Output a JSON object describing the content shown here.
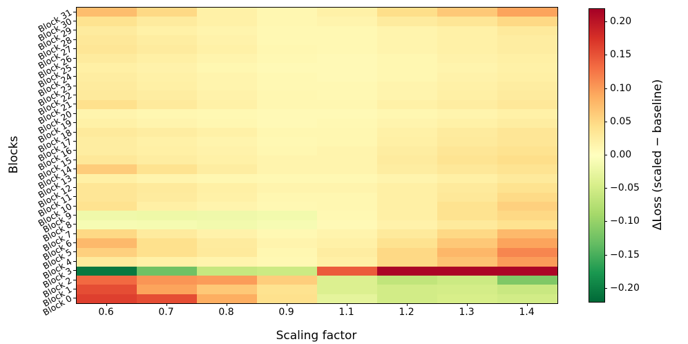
{
  "chart_data": {
    "type": "heatmap",
    "xlabel": "Scaling factor",
    "ylabel": "Blocks",
    "colorbar_label": "ΔLoss (scaled − baseline)",
    "x_categories": [
      "0.6",
      "0.7",
      "0.8",
      "0.9",
      "1.1",
      "1.2",
      "1.3",
      "1.4"
    ],
    "row_labels_top_to_bottom": [
      "Block 31",
      "Block 30",
      "Block 29",
      "Block 28",
      "Block 27",
      "Block 26",
      "Block 25",
      "Block 24",
      "Block 23",
      "Block 22",
      "Block 21",
      "Block 20",
      "Block 19",
      "Block 18",
      "Block 17",
      "Block 16",
      "Block 15",
      "Block 14",
      "Block 13",
      "Block 12",
      "Block 11",
      "Block 10",
      "Block 9",
      "Block 8",
      "Block 7",
      "Block 6",
      "Block 5",
      "Block 4",
      "Block 3",
      "Block 2",
      "Block 1",
      "Block 0"
    ],
    "values_top_to_bottom": [
      [
        0.075,
        0.05,
        0.02,
        0.012,
        0.02,
        0.045,
        0.065,
        0.095
      ],
      [
        0.04,
        0.028,
        0.02,
        0.012,
        0.015,
        0.028,
        0.035,
        0.05
      ],
      [
        0.028,
        0.02,
        0.015,
        0.01,
        0.01,
        0.015,
        0.02,
        0.03
      ],
      [
        0.032,
        0.025,
        0.018,
        0.01,
        0.01,
        0.015,
        0.02,
        0.025
      ],
      [
        0.035,
        0.028,
        0.02,
        0.012,
        0.01,
        0.015,
        0.02,
        0.025
      ],
      [
        0.028,
        0.022,
        0.015,
        0.01,
        0.008,
        0.012,
        0.018,
        0.022
      ],
      [
        0.022,
        0.018,
        0.012,
        0.008,
        0.008,
        0.012,
        0.015,
        0.02
      ],
      [
        0.025,
        0.02,
        0.015,
        0.01,
        0.008,
        0.012,
        0.018,
        0.022
      ],
      [
        0.028,
        0.022,
        0.015,
        0.01,
        0.01,
        0.015,
        0.02,
        0.025
      ],
      [
        0.03,
        0.025,
        0.018,
        0.012,
        0.01,
        0.015,
        0.022,
        0.028
      ],
      [
        0.042,
        0.03,
        0.02,
        0.012,
        0.012,
        0.02,
        0.025,
        0.032
      ],
      [
        0.015,
        0.012,
        0.01,
        0.008,
        0.008,
        0.012,
        0.015,
        0.02
      ],
      [
        0.02,
        0.015,
        0.012,
        0.008,
        0.01,
        0.015,
        0.02,
        0.025
      ],
      [
        0.03,
        0.025,
        0.02,
        0.012,
        0.012,
        0.02,
        0.028,
        0.035
      ],
      [
        0.025,
        0.02,
        0.015,
        0.01,
        0.012,
        0.022,
        0.03,
        0.035
      ],
      [
        0.025,
        0.022,
        0.018,
        0.012,
        0.015,
        0.025,
        0.035,
        0.04
      ],
      [
        0.032,
        0.025,
        0.02,
        0.015,
        0.015,
        0.028,
        0.038,
        0.045
      ],
      [
        0.062,
        0.04,
        0.025,
        0.015,
        0.015,
        0.025,
        0.032,
        0.038
      ],
      [
        0.022,
        0.015,
        0.012,
        0.01,
        0.01,
        0.015,
        0.022,
        0.03
      ],
      [
        0.035,
        0.03,
        0.022,
        0.015,
        0.015,
        0.022,
        0.03,
        0.04
      ],
      [
        0.035,
        0.028,
        0.02,
        0.012,
        0.012,
        0.022,
        0.032,
        0.048
      ],
      [
        0.04,
        0.022,
        0.015,
        0.01,
        0.012,
        0.022,
        0.04,
        0.058
      ],
      [
        -0.018,
        -0.02,
        -0.018,
        -0.015,
        0.01,
        0.022,
        0.04,
        0.05
      ],
      [
        -0.01,
        -0.012,
        -0.015,
        -0.01,
        0.008,
        0.018,
        0.03,
        0.04
      ],
      [
        0.05,
        0.028,
        0.018,
        0.01,
        0.015,
        0.03,
        0.05,
        0.078
      ],
      [
        0.078,
        0.042,
        0.028,
        0.015,
        0.02,
        0.04,
        0.065,
        0.095
      ],
      [
        0.058,
        0.042,
        0.03,
        0.012,
        0.025,
        0.05,
        0.08,
        0.115
      ],
      [
        0.03,
        0.02,
        0.015,
        0.01,
        0.022,
        0.05,
        0.07,
        0.1
      ],
      [
        -0.205,
        -0.125,
        -0.06,
        -0.055,
        0.145,
        0.215,
        0.215,
        0.215
      ],
      [
        0.135,
        0.105,
        0.1,
        0.06,
        -0.04,
        -0.065,
        -0.055,
        -0.115
      ],
      [
        0.155,
        0.095,
        0.065,
        0.04,
        -0.04,
        -0.05,
        -0.048,
        -0.058
      ],
      [
        0.165,
        0.155,
        0.088,
        0.042,
        -0.03,
        -0.05,
        -0.045,
        -0.05
      ]
    ],
    "vmin": -0.22,
    "vmax": 0.22,
    "colormap_name": "RdYlGn_r",
    "colormap_anchors_low_to_high": [
      "#006837",
      "#1a9850",
      "#66bd63",
      "#a6d96a",
      "#d9ef8b",
      "#ffffbf",
      "#fee08b",
      "#fdae61",
      "#f46d43",
      "#d73027",
      "#a50026"
    ],
    "colorbar_tick_labels": [
      "0.20",
      "0.15",
      "0.10",
      "0.05",
      "0.00",
      "−0.05",
      "−0.10",
      "−0.15",
      "−0.20"
    ],
    "colorbar_tick_values": [
      0.2,
      0.15,
      0.1,
      0.05,
      0.0,
      -0.05,
      -0.1,
      -0.15,
      -0.2
    ],
    "legend_position": "right",
    "grid": false
  }
}
